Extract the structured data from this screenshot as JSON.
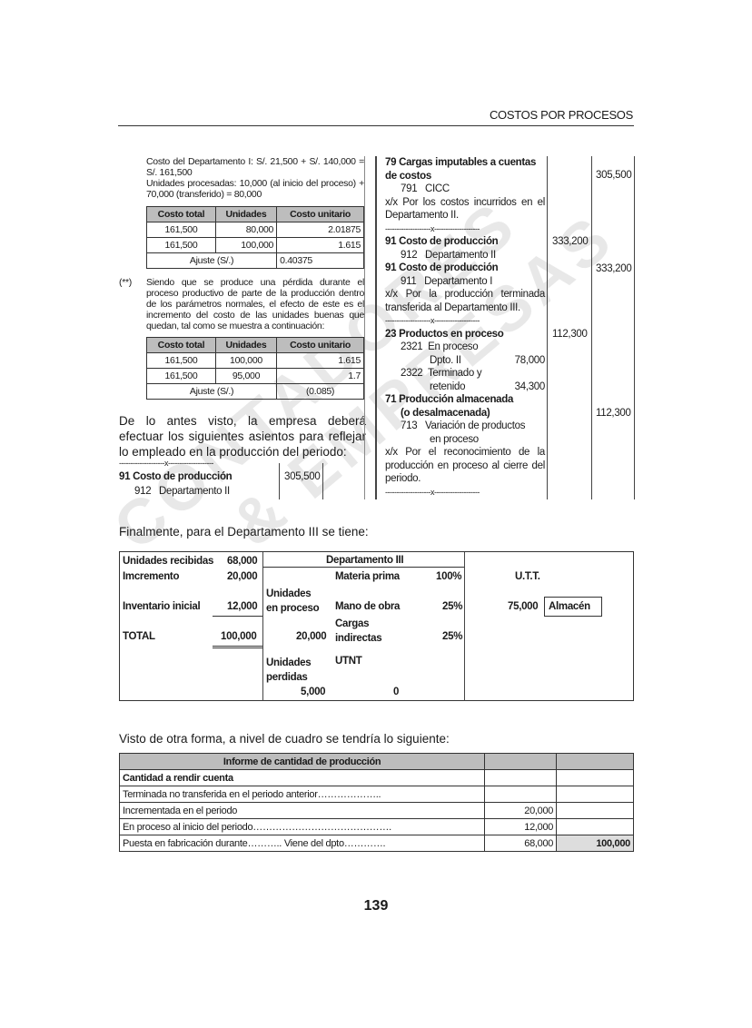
{
  "header": {
    "title": "COSTOS POR PROCESOS"
  },
  "left": {
    "intro": [
      "Costo del Departamento I: S/. 21,500 + S/. 140,000 = S/. 161,500",
      "Unidades procesadas: 10,000 (al inicio del proceso) + 70,000 (transferido) = 80,000"
    ],
    "table1": {
      "headers": [
        "Costo total",
        "Unidades",
        "Costo unitario"
      ],
      "rows": [
        [
          "161,500",
          "80,000",
          "2.01875"
        ],
        [
          "161,500",
          "100,000",
          "1.615"
        ]
      ],
      "adjust_label": "Ajuste (S/.)",
      "adjust_value": "0.40375"
    },
    "note_marker": "(**)",
    "note": "Siendo que se produce una pérdida durante el proceso productivo de parte de la producción dentro de los parámetros normales, el efecto de este es el incremento del costo de las unidades buenas que quedan, tal como se muestra a continuación:",
    "table2": {
      "headers": [
        "Costo total",
        "Unidades",
        "Costo unitario"
      ],
      "rows": [
        [
          "161,500",
          "100,000",
          "1.615"
        ],
        [
          "161,500",
          "95,000",
          "1.7"
        ]
      ],
      "adjust_label": "Ajuste (S/.)",
      "adjust_value": "(0.085)"
    },
    "paragraph": "De lo antes visto, la empresa deberá efectuar los siguientes asientos para reflejar lo empleado en la producción del periodo:",
    "separator": "--------------------x--------------------",
    "entry": {
      "account": "91 Costo de producción",
      "sub": "912   Departamento II",
      "debit": "305,500"
    }
  },
  "right": {
    "separator": "--------------------x--------------------",
    "e1": {
      "account": "79 Cargas imputables a cuentas de costos",
      "sub": "791   CICC",
      "credit": "305,500",
      "gloss": "x/x Por los costos incurridos en el Departamento II."
    },
    "e2": {
      "account1": "91 Costo de producción",
      "sub1": "912   Departamento II",
      "debit": "333,200",
      "account2": "91 Costo de producción",
      "sub2": "911   Departamento I",
      "credit": "333,200",
      "gloss": "x/x Por la producción terminada transferida al Departamento III."
    },
    "e3": {
      "account1": "23 Productos en proceso",
      "debit": "112,300",
      "sub1a": "2321  En proceso",
      "sub1b": "Dpto. II",
      "sub1v": "78,000",
      "sub2a": "2322  Terminado y",
      "sub2b": "retenido",
      "sub2v": "34,300",
      "account2a": "71 Producción almacenada",
      "account2b": "(o desalmacenada)",
      "credit": "112,300",
      "sub3a": "713   Variación de productos",
      "sub3b": "en proceso",
      "gloss": "x/x Por el reconocimiento de la producción en proceso al cierre del periodo."
    }
  },
  "dept3_intro": "Finalmente, para el Departamento III se tiene:",
  "dept3": {
    "left": [
      [
        "Unidades recibidas",
        "68,000"
      ],
      [
        "Imcremento",
        "20,000"
      ],
      [
        "Inventario inicial",
        "12,000"
      ],
      [
        "TOTAL",
        "100,000"
      ]
    ],
    "title": "Departamento III",
    "process_label": "Unidades en proceso",
    "process_value": "20,000",
    "materia": "Materia prima",
    "materia_pct": "100%",
    "mano": "Mano de obra",
    "mano_pct": "25%",
    "cargas": "Cargas indirectas",
    "cargas_pct": "25%",
    "lost_label": "Unidades perdidas",
    "lost_value": "5,000",
    "utnt": "UTNT",
    "utnt_value": "0",
    "utt": "U.T.T.",
    "utt_value": "75,000",
    "almacen": "Almacén"
  },
  "report_intro": "Visto de otra forma, a nivel de cuadro se tendría lo siguiente:",
  "report": {
    "title": "Informe de cantidad de producción",
    "section": "Cantidad a rendir cuenta",
    "rows": [
      [
        "Terminada no transferida en el periodo anterior………………..",
        "",
        ""
      ],
      [
        "Incrementada en el periodo",
        "20,000",
        ""
      ],
      [
        "En proceso al inicio del periodo…………………………………….",
        "12,000",
        ""
      ],
      [
        "Puesta en fabricación durante……….. Viene del dpto………….",
        "68,000",
        "100,000"
      ]
    ]
  },
  "page_number": "139",
  "watermark": "CONTADORES & EMPRESAS"
}
